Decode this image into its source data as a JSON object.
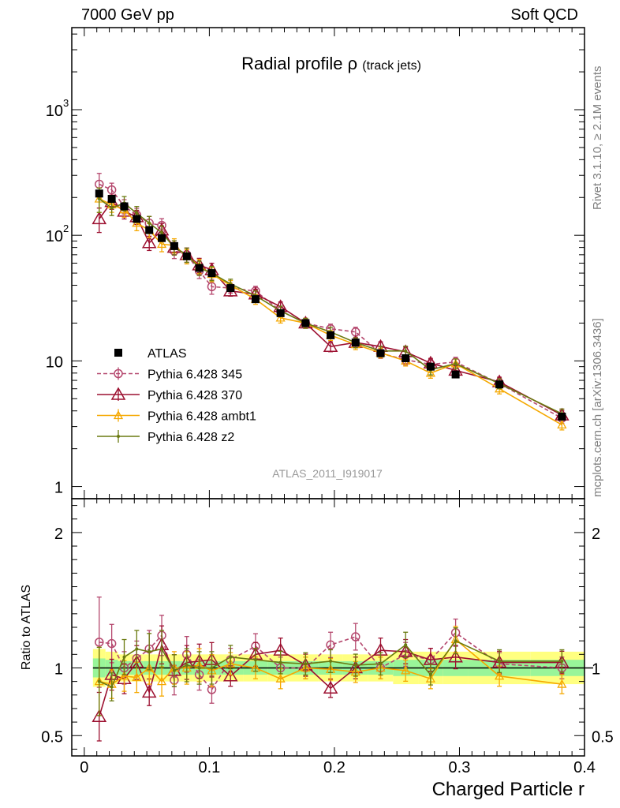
{
  "header": {
    "left": "7000 GeV pp",
    "right": "Soft QCD"
  },
  "side_labels": {
    "rivet": "Rivet 3.1.10, ≥ 2.1M events",
    "mcplots": "mcplots.cern.ch [arXiv:1306.3436]"
  },
  "chart_data": [
    {
      "type": "line",
      "panel": "main",
      "title": "Radial profile",
      "title_symbol": "ρ",
      "title_suffix": "(track jets)",
      "watermark": "ATLAS_2011_I919017",
      "yscale": "log",
      "ylim": [
        0.8,
        4500
      ],
      "xlim": [
        -0.01,
        0.4
      ],
      "y_ticks": [
        {
          "value": 1,
          "label": "1"
        },
        {
          "value": 10,
          "label": "10"
        },
        {
          "value": 100,
          "label": "10",
          "sup": "2"
        },
        {
          "value": 1000,
          "label": "10",
          "sup": "3"
        }
      ],
      "legend_position": "lower-left",
      "series": [
        {
          "name": "ATLAS",
          "color": "#000000",
          "marker": "square",
          "line": "none",
          "x": [
            0.005,
            0.015,
            0.025,
            0.035,
            0.045,
            0.055,
            0.065,
            0.075,
            0.085,
            0.095,
            0.11,
            0.13,
            0.15,
            0.17,
            0.19,
            0.21,
            0.23,
            0.25,
            0.27,
            0.29,
            0.325,
            0.375
          ],
          "y": [
            215,
            195,
            170,
            135,
            110,
            95,
            82,
            68,
            55,
            50,
            38,
            31,
            24,
            20,
            16,
            14,
            11.5,
            10.5,
            9,
            7.8,
            6.5,
            3.6
          ]
        },
        {
          "name": "Pythia 6.428 345",
          "color": "#b5486e",
          "marker": "open-circle",
          "line": "dashed",
          "x": [
            0.005,
            0.015,
            0.025,
            0.035,
            0.045,
            0.055,
            0.065,
            0.075,
            0.085,
            0.095,
            0.11,
            0.13,
            0.15,
            0.17,
            0.19,
            0.21,
            0.23,
            0.25,
            0.27,
            0.29,
            0.325,
            0.375
          ],
          "y": [
            255,
            230,
            170,
            145,
            125,
            120,
            75,
            70,
            52,
            39,
            38,
            36,
            25,
            20,
            18,
            17,
            11.5,
            10.2,
            9.4,
            9.8,
            6.6,
            3.5
          ]
        },
        {
          "name": "Pythia 6.428 370",
          "color": "#9c1030",
          "marker": "open-triangle",
          "line": "solid",
          "x": [
            0.005,
            0.015,
            0.025,
            0.035,
            0.045,
            0.055,
            0.065,
            0.075,
            0.085,
            0.095,
            0.11,
            0.13,
            0.15,
            0.17,
            0.19,
            0.21,
            0.23,
            0.25,
            0.27,
            0.29,
            0.325,
            0.375
          ],
          "y": [
            135,
            185,
            155,
            140,
            87,
            110,
            80,
            70,
            58,
            53,
            36,
            34,
            27,
            20,
            13,
            14,
            13,
            11.8,
            9.6,
            8.4,
            6.8,
            3.7
          ]
        },
        {
          "name": "Pythia 6.428 ambt1",
          "color": "#f5a800",
          "marker": "open-triangle-small",
          "line": "solid",
          "x": [
            0.005,
            0.015,
            0.025,
            0.035,
            0.045,
            0.055,
            0.065,
            0.075,
            0.085,
            0.095,
            0.11,
            0.13,
            0.15,
            0.17,
            0.19,
            0.21,
            0.23,
            0.25,
            0.27,
            0.29,
            0.325,
            0.375
          ],
          "y": [
            195,
            175,
            160,
            125,
            110,
            85,
            83,
            68,
            57,
            49,
            40,
            31,
            22,
            20,
            16,
            13.5,
            11.6,
            10,
            8,
            9.5,
            6,
            3.1
          ]
        },
        {
          "name": "Pythia 6.428 z2",
          "color": "#6a7a10",
          "marker": "dot",
          "line": "solid",
          "x": [
            0.005,
            0.015,
            0.025,
            0.035,
            0.045,
            0.055,
            0.065,
            0.075,
            0.085,
            0.095,
            0.11,
            0.13,
            0.15,
            0.17,
            0.19,
            0.21,
            0.23,
            0.25,
            0.27,
            0.29,
            0.325,
            0.375
          ],
          "y": [
            195,
            165,
            180,
            150,
            125,
            105,
            80,
            70,
            55,
            50,
            41,
            33,
            25,
            20,
            17,
            14,
            12,
            12,
            8.5,
            9.5,
            6.6,
            3.8
          ]
        }
      ]
    },
    {
      "type": "line",
      "panel": "ratio",
      "ylabel": "Ratio to ATLAS",
      "xlabel": "Charged Particle r",
      "ylim": [
        0.35,
        2.25
      ],
      "xlim": [
        -0.01,
        0.4
      ],
      "x_ticks": [
        {
          "value": 0,
          "label": "0"
        },
        {
          "value": 0.1,
          "label": "0.1"
        },
        {
          "value": 0.2,
          "label": "0.2"
        },
        {
          "value": 0.3,
          "label": "0.3"
        },
        {
          "value": 0.4,
          "label": "0.4"
        }
      ],
      "y_ticks": [
        {
          "value": 0.5,
          "label": "0.5"
        },
        {
          "value": 1,
          "label": "1"
        },
        {
          "value": 2,
          "label": "2"
        }
      ],
      "reference_band_bins": [
        0.0,
        0.01,
        0.02,
        0.03,
        0.04,
        0.05,
        0.06,
        0.07,
        0.08,
        0.09,
        0.1,
        0.12,
        0.14,
        0.16,
        0.18,
        0.2,
        0.22,
        0.24,
        0.26,
        0.28,
        0.3,
        0.35,
        0.4
      ],
      "reference_band_inner": [
        0.07,
        0.06,
        0.05,
        0.05,
        0.05,
        0.05,
        0.05,
        0.05,
        0.05,
        0.05,
        0.05,
        0.05,
        0.05,
        0.05,
        0.05,
        0.05,
        0.05,
        0.06,
        0.06,
        0.06,
        0.06,
        0.06
      ],
      "reference_band_outer": [
        0.14,
        0.12,
        0.1,
        0.1,
        0.1,
        0.1,
        0.1,
        0.1,
        0.1,
        0.1,
        0.1,
        0.1,
        0.1,
        0.1,
        0.1,
        0.1,
        0.1,
        0.12,
        0.12,
        0.12,
        0.12,
        0.12
      ],
      "series": [
        {
          "name": "Pythia 6.428 345",
          "color": "#b5486e",
          "marker": "open-circle",
          "line": "dashed",
          "x": [
            0.005,
            0.015,
            0.025,
            0.035,
            0.045,
            0.055,
            0.065,
            0.075,
            0.085,
            0.095,
            0.11,
            0.13,
            0.15,
            0.17,
            0.19,
            0.21,
            0.23,
            0.25,
            0.27,
            0.29,
            0.325,
            0.375
          ],
          "y": [
            1.19,
            1.18,
            1.0,
            1.07,
            1.14,
            1.24,
            0.91,
            1.1,
            0.95,
            0.84,
            1.06,
            1.16,
            1.0,
            1.0,
            1.17,
            1.23,
            1.0,
            1.1,
            1.06,
            1.26,
            1.03,
            1.0
          ]
        },
        {
          "name": "Pythia 6.428 370",
          "color": "#9c1030",
          "marker": "open-triangle",
          "line": "solid",
          "x": [
            0.005,
            0.015,
            0.025,
            0.035,
            0.045,
            0.055,
            0.065,
            0.075,
            0.085,
            0.095,
            0.11,
            0.13,
            0.15,
            0.17,
            0.19,
            0.21,
            0.23,
            0.25,
            0.27,
            0.29,
            0.325,
            0.375
          ],
          "y": [
            0.64,
            0.95,
            0.92,
            1.04,
            0.82,
            1.17,
            0.98,
            1.04,
            1.05,
            1.06,
            0.94,
            1.1,
            1.13,
            1.02,
            0.85,
            1.0,
            1.13,
            1.12,
            1.06,
            1.08,
            1.04,
            1.04
          ]
        },
        {
          "name": "Pythia 6.428 ambt1",
          "color": "#f5a800",
          "marker": "open-triangle-small",
          "line": "solid",
          "x": [
            0.005,
            0.015,
            0.025,
            0.035,
            0.045,
            0.055,
            0.065,
            0.075,
            0.085,
            0.095,
            0.11,
            0.13,
            0.15,
            0.17,
            0.19,
            0.21,
            0.23,
            0.25,
            0.27,
            0.29,
            0.325,
            0.375
          ],
          "y": [
            0.9,
            0.88,
            0.94,
            0.93,
            1.0,
            0.9,
            1.0,
            1.0,
            1.02,
            0.98,
            1.03,
            1.0,
            0.92,
            1.0,
            0.99,
            0.97,
            1.0,
            0.98,
            0.92,
            1.21,
            0.94,
            0.88
          ]
        },
        {
          "name": "Pythia 6.428 z2",
          "color": "#6a7a10",
          "marker": "dot",
          "line": "solid",
          "x": [
            0.005,
            0.015,
            0.025,
            0.035,
            0.045,
            0.055,
            0.065,
            0.075,
            0.085,
            0.095,
            0.11,
            0.13,
            0.15,
            0.17,
            0.19,
            0.21,
            0.23,
            0.25,
            0.27,
            0.29,
            0.325,
            0.375
          ],
          "y": [
            0.9,
            0.86,
            1.08,
            1.14,
            1.12,
            1.14,
            0.98,
            1.02,
            1.0,
            1.0,
            1.08,
            1.06,
            1.04,
            1.03,
            1.05,
            1.02,
            1.03,
            1.17,
            0.95,
            1.2,
            1.05,
            1.05
          ]
        }
      ]
    }
  ]
}
